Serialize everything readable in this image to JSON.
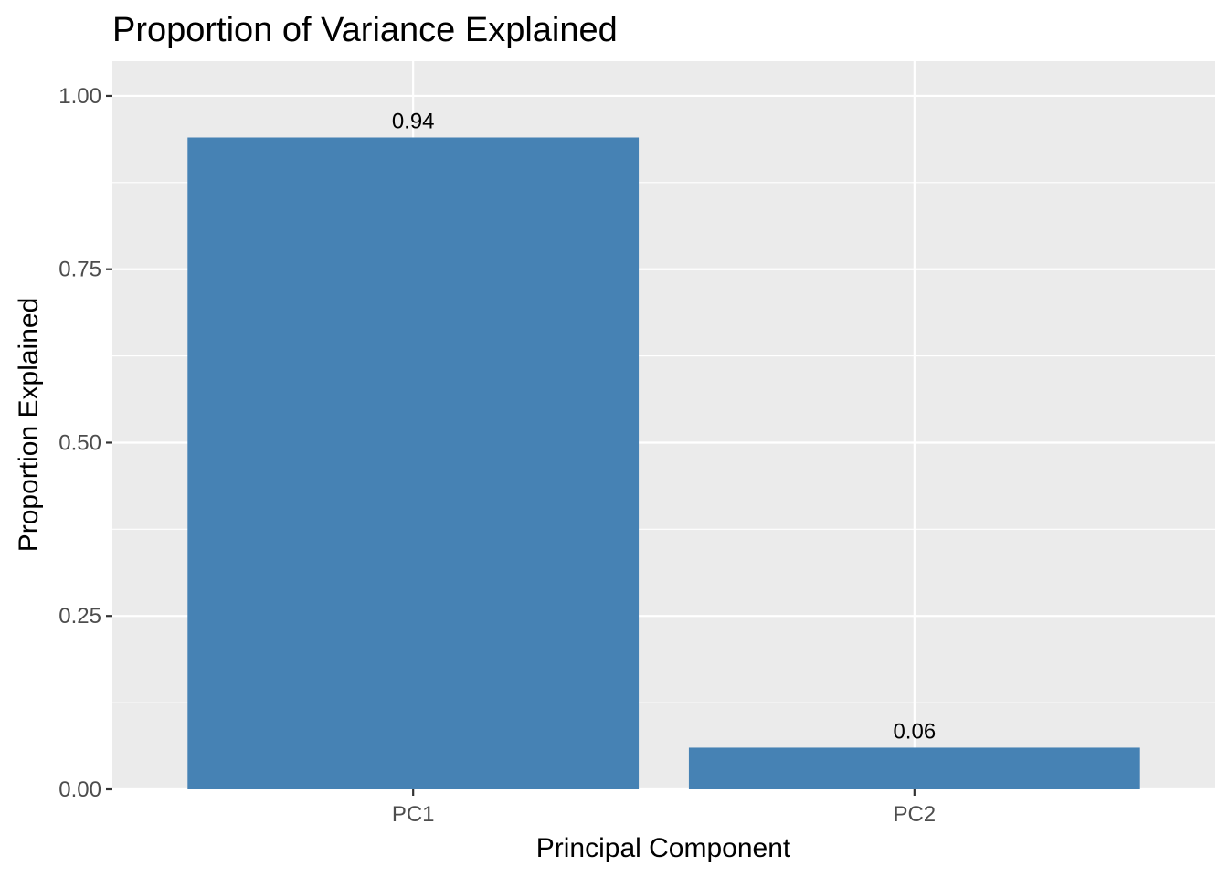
{
  "chart_data": {
    "type": "bar",
    "title": "Proportion of Variance Explained",
    "xlabel": "Principal Component",
    "ylabel": "Proportion Explained",
    "categories": [
      "PC1",
      "PC2"
    ],
    "values": [
      0.94,
      0.06
    ],
    "data_labels": [
      "0.94",
      "0.06"
    ],
    "ylim": [
      0,
      1.05
    ],
    "yticks": [
      0,
      0.25,
      0.5,
      0.75,
      1.0
    ],
    "ytick_labels": [
      "0.00",
      "0.25",
      "0.50",
      "0.75",
      "1.00"
    ],
    "grid": true,
    "legend": "none",
    "bar_color": "#4682b4",
    "panel_color": "#ebebeb",
    "grid_color": "#ffffff"
  }
}
